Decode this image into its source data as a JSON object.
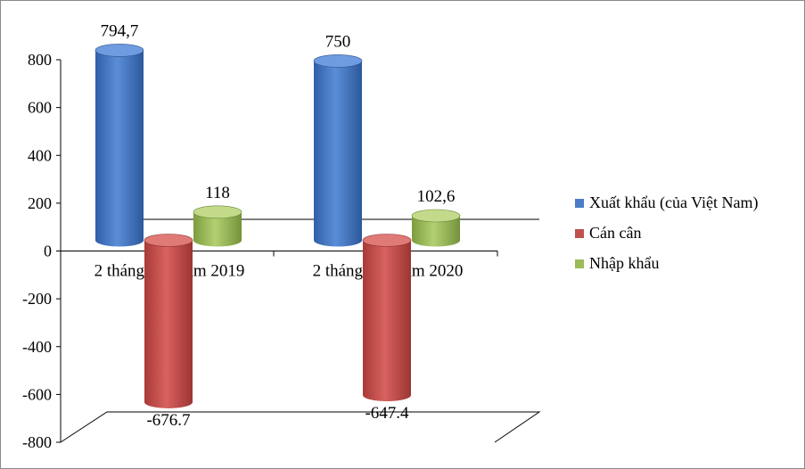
{
  "chart_data": {
    "type": "bar",
    "categories": [
      "2 tháng đầu năm 2019",
      "2 tháng đầu năm 2020"
    ],
    "series": [
      {
        "name": "Xuất khẩu (của Việt Nam)",
        "values": [
          794.7,
          750
        ],
        "labels": [
          "794,7",
          "750"
        ],
        "color": "#4a7cc7"
      },
      {
        "name": "Cán cân",
        "values": [
          -676.7,
          -647.4
        ],
        "labels": [
          "-676.7",
          "-647.4"
        ],
        "color": "#c0504d"
      },
      {
        "name": "Nhập khẩu",
        "values": [
          118,
          102.6
        ],
        "labels": [
          "118",
          "102,6"
        ],
        "color": "#9bbb59"
      }
    ],
    "yticks": [
      "800",
      "600",
      "400",
      "200",
      "0",
      "-200",
      "-400",
      "-600",
      "-800"
    ],
    "ylim": [
      -800,
      800
    ],
    "legend_position": "right",
    "grid": false
  }
}
